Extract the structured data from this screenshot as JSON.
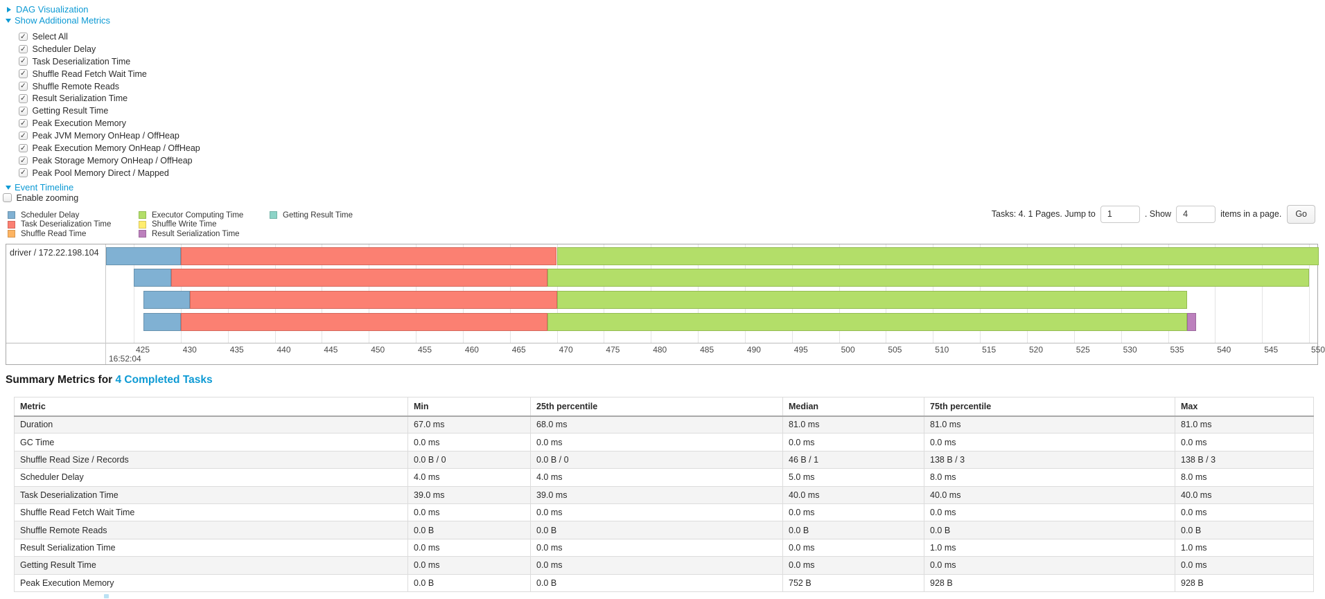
{
  "colors": {
    "link": "#0d9ad4",
    "segments": {
      "scheduler_delay": {
        "fill": "#80B1D3",
        "stroke": "#6892AE"
      },
      "task_deserialization": {
        "fill": "#FB8072",
        "stroke": "#D4685C"
      },
      "shuffle_read": {
        "fill": "#FDB462",
        "stroke": "#D69650"
      },
      "executor_computing": {
        "fill": "#B3DE69",
        "stroke": "#94BC52"
      },
      "shuffle_write": {
        "fill": "#FFED6F",
        "stroke": "#D9C75A"
      },
      "result_serialization": {
        "fill": "#BC80BD",
        "stroke": "#9D699E"
      },
      "getting_result": {
        "fill": "#8DD3C7",
        "stroke": "#72B3A7"
      }
    }
  },
  "top_links": {
    "dag": "DAG Visualization",
    "metrics": "Show Additional Metrics",
    "event_timeline": "Event Timeline"
  },
  "metrics_panel": {
    "items": [
      "Select All",
      "Scheduler Delay",
      "Task Deserialization Time",
      "Shuffle Read Fetch Wait Time",
      "Shuffle Remote Reads",
      "Result Serialization Time",
      "Getting Result Time",
      "Peak Execution Memory",
      "Peak JVM Memory OnHeap / OffHeap",
      "Peak Execution Memory OnHeap / OffHeap",
      "Peak Storage Memory OnHeap / OffHeap",
      "Peak Pool Memory Direct / Mapped"
    ]
  },
  "enable_zooming_label": "Enable zooming",
  "legend": {
    "columns": [
      [
        {
          "key": "scheduler_delay",
          "label": "Scheduler Delay"
        },
        {
          "key": "task_deserialization",
          "label": "Task Deserialization Time"
        },
        {
          "key": "shuffle_read",
          "label": "Shuffle Read Time"
        }
      ],
      [
        {
          "key": "executor_computing",
          "label": "Executor Computing Time"
        },
        {
          "key": "shuffle_write",
          "label": "Shuffle Write Time"
        },
        {
          "key": "result_serialization",
          "label": "Result Serialization Time"
        }
      ],
      [
        {
          "key": "getting_result",
          "label": "Getting Result Time"
        }
      ]
    ]
  },
  "pagination": {
    "tasks_text": "Tasks: 4. 1 Pages. Jump to",
    "jump_value": "1",
    "show_text": ". Show",
    "show_value": "4",
    "items_text": "items in a page.",
    "go_label": "Go"
  },
  "timeline": {
    "row_label": "driver / 172.22.198.104",
    "axis": {
      "start": 425,
      "end": 550,
      "step": 5,
      "time_label": "16:52:04"
    },
    "tasks": [
      {
        "segments": [
          {
            "key": "scheduler_delay",
            "from": 422,
            "to": 430
          },
          {
            "key": "task_deserialization",
            "from": 430,
            "to": 470
          },
          {
            "key": "executor_computing",
            "from": 470,
            "to": 551
          }
        ]
      },
      {
        "segments": [
          {
            "key": "scheduler_delay",
            "from": 425,
            "to": 429
          },
          {
            "key": "task_deserialization",
            "from": 429,
            "to": 469
          },
          {
            "key": "executor_computing",
            "from": 469,
            "to": 550
          }
        ]
      },
      {
        "segments": [
          {
            "key": "scheduler_delay",
            "from": 426,
            "to": 431
          },
          {
            "key": "task_deserialization",
            "from": 431,
            "to": 470
          },
          {
            "key": "executor_computing",
            "from": 470,
            "to": 537
          }
        ]
      },
      {
        "segments": [
          {
            "key": "scheduler_delay",
            "from": 426,
            "to": 430
          },
          {
            "key": "task_deserialization",
            "from": 430,
            "to": 469
          },
          {
            "key": "executor_computing",
            "from": 469,
            "to": 537
          },
          {
            "key": "result_serialization",
            "from": 537,
            "to": 538
          }
        ]
      }
    ]
  },
  "summary": {
    "heading_prefix": "Summary Metrics for ",
    "heading_link": "4 Completed Tasks"
  },
  "chart_data": {
    "type": "table",
    "title": "Summary Metrics for 4 Completed Tasks",
    "columns": [
      "Metric",
      "Min",
      "25th percentile",
      "Median",
      "75th percentile",
      "Max"
    ],
    "rows": [
      [
        "Duration",
        "67.0 ms",
        "68.0 ms",
        "81.0 ms",
        "81.0 ms",
        "81.0 ms"
      ],
      [
        "GC Time",
        "0.0 ms",
        "0.0 ms",
        "0.0 ms",
        "0.0 ms",
        "0.0 ms"
      ],
      [
        "Shuffle Read Size / Records",
        "0.0 B / 0",
        "0.0 B / 0",
        "46 B / 1",
        "138 B / 3",
        "138 B / 3"
      ],
      [
        "Scheduler Delay",
        "4.0 ms",
        "4.0 ms",
        "5.0 ms",
        "8.0 ms",
        "8.0 ms"
      ],
      [
        "Task Deserialization Time",
        "39.0 ms",
        "39.0 ms",
        "40.0 ms",
        "40.0 ms",
        "40.0 ms"
      ],
      [
        "Shuffle Read Fetch Wait Time",
        "0.0 ms",
        "0.0 ms",
        "0.0 ms",
        "0.0 ms",
        "0.0 ms"
      ],
      [
        "Shuffle Remote Reads",
        "0.0 B",
        "0.0 B",
        "0.0 B",
        "0.0 B",
        "0.0 B"
      ],
      [
        "Result Serialization Time",
        "0.0 ms",
        "0.0 ms",
        "0.0 ms",
        "1.0 ms",
        "1.0 ms"
      ],
      [
        "Getting Result Time",
        "0.0 ms",
        "0.0 ms",
        "0.0 ms",
        "0.0 ms",
        "0.0 ms"
      ],
      [
        "Peak Execution Memory",
        "0.0 B",
        "0.0 B",
        "752 B",
        "928 B",
        "928 B"
      ]
    ]
  }
}
